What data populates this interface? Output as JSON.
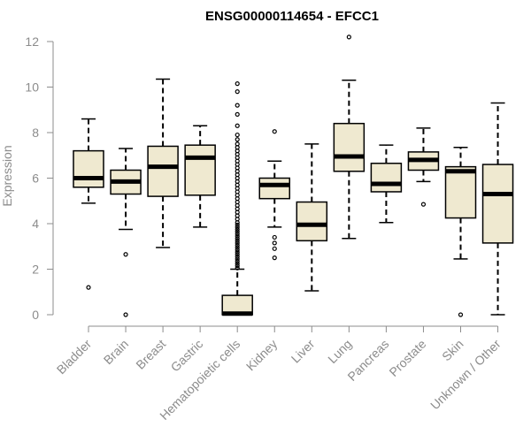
{
  "chart_data": {
    "type": "boxplot",
    "title": "ENSG00000114654 - EFCC1",
    "xlabel": "",
    "ylabel": "Expression",
    "ylim": [
      0,
      12
    ],
    "yticks": [
      0,
      2,
      4,
      6,
      8,
      10,
      12
    ],
    "colors": {
      "box_fill": "#efe9d0",
      "box_stroke": "#000000",
      "axis": "#8c8c8c",
      "text": "#8c8c8c"
    },
    "categories": [
      "Bladder",
      "Brain",
      "Breast",
      "Gastric",
      "Hematopoietic cells",
      "Kidney",
      "Liver",
      "Lung",
      "Pancreas",
      "Prostate",
      "Skin",
      "Unknown / Other"
    ],
    "boxes": [
      {
        "category": "Bladder",
        "whisker_low": 4.9,
        "q1": 5.6,
        "median": 6.0,
        "q3": 7.2,
        "whisker_high": 8.6,
        "outliers": [
          1.2
        ]
      },
      {
        "category": "Brain",
        "whisker_low": 3.75,
        "q1": 5.3,
        "median": 5.85,
        "q3": 6.35,
        "whisker_high": 7.3,
        "outliers": [
          2.65,
          0.0
        ]
      },
      {
        "category": "Breast",
        "whisker_low": 2.95,
        "q1": 5.2,
        "median": 6.5,
        "q3": 7.4,
        "whisker_high": 10.35,
        "outliers": []
      },
      {
        "category": "Gastric",
        "whisker_low": 3.85,
        "q1": 5.25,
        "median": 6.9,
        "q3": 7.45,
        "whisker_high": 8.3,
        "outliers": []
      },
      {
        "category": "Hematopoietic cells",
        "whisker_low": 0.0,
        "q1": 0.0,
        "median": 0.05,
        "q3": 0.85,
        "whisker_high": 2.0,
        "outliers": [
          2.05,
          2.15,
          2.25,
          2.35,
          2.45,
          2.55,
          2.65,
          2.75,
          2.85,
          2.95,
          3.05,
          3.15,
          3.25,
          3.35,
          3.45,
          3.55,
          3.65,
          3.75,
          3.85,
          3.95,
          4.05,
          4.2,
          4.35,
          4.5,
          4.65,
          4.8,
          4.95,
          5.1,
          5.25,
          5.4,
          5.55,
          5.7,
          5.85,
          6.0,
          6.15,
          6.3,
          6.45,
          6.6,
          6.75,
          6.9,
          7.05,
          7.2,
          7.35,
          7.5,
          7.7,
          7.9,
          8.3,
          8.8,
          9.2,
          9.8,
          10.15
        ]
      },
      {
        "category": "Kidney",
        "whisker_low": 3.85,
        "q1": 5.1,
        "median": 5.7,
        "q3": 6.0,
        "whisker_high": 6.75,
        "outliers": [
          8.05,
          3.4,
          3.15,
          2.9,
          2.5
        ]
      },
      {
        "category": "Liver",
        "whisker_low": 1.05,
        "q1": 3.25,
        "median": 3.95,
        "q3": 4.95,
        "whisker_high": 7.5,
        "outliers": []
      },
      {
        "category": "Lung",
        "whisker_low": 3.35,
        "q1": 6.3,
        "median": 6.95,
        "q3": 8.4,
        "whisker_high": 10.3,
        "outliers": [
          12.2
        ]
      },
      {
        "category": "Pancreas",
        "whisker_low": 4.05,
        "q1": 5.4,
        "median": 5.75,
        "q3": 6.65,
        "whisker_high": 7.45,
        "outliers": []
      },
      {
        "category": "Prostate",
        "whisker_low": 5.85,
        "q1": 6.35,
        "median": 6.8,
        "q3": 7.15,
        "whisker_high": 8.2,
        "outliers": [
          4.85
        ]
      },
      {
        "category": "Skin",
        "whisker_low": 2.45,
        "q1": 4.25,
        "median": 6.3,
        "q3": 6.5,
        "whisker_high": 7.35,
        "outliers": [
          0.0
        ]
      },
      {
        "category": "Unknown / Other",
        "whisker_low": 0.0,
        "q1": 3.15,
        "median": 5.3,
        "q3": 6.6,
        "whisker_high": 9.3,
        "outliers": []
      }
    ]
  }
}
